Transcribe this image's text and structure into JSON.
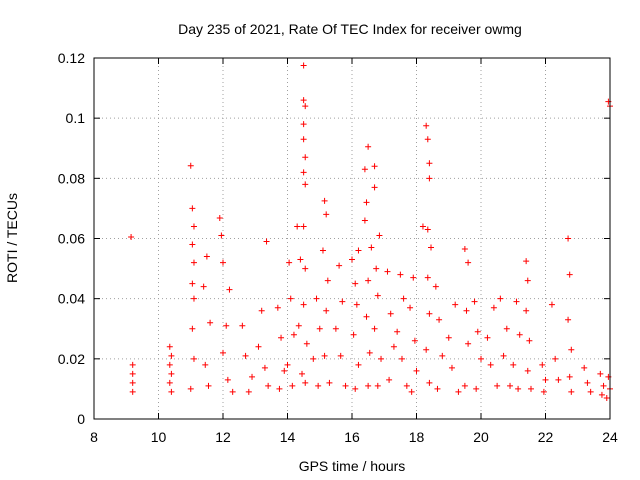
{
  "chart_data": {
    "type": "scatter",
    "title": "Day 235 of 2021, Rate Of TEC Index for receiver owmg",
    "xlabel": "GPS time / hours",
    "ylabel": "ROTI / TECUs",
    "xlim": [
      8,
      24
    ],
    "ylim": [
      0,
      0.12
    ],
    "xticks": [
      8,
      10,
      12,
      14,
      16,
      18,
      20,
      22,
      24
    ],
    "xtick_labels": [
      "8",
      "10",
      "12",
      "14",
      "16",
      "18",
      "20",
      "22",
      "24"
    ],
    "yticks": [
      0,
      0.02,
      0.04,
      0.06,
      0.08,
      0.1,
      0.12
    ],
    "ytick_labels": [
      "0",
      "0.02",
      "0.04",
      "0.06",
      "0.08",
      "0.1",
      "0.12"
    ],
    "grid": true,
    "marker": "plus",
    "color": "#ff0000",
    "series": [
      {
        "points": [
          [
            9.15,
            0.0605
          ],
          [
            9.2,
            0.018
          ],
          [
            9.2,
            0.015
          ],
          [
            9.2,
            0.012
          ],
          [
            9.2,
            0.009
          ],
          [
            10.35,
            0.024
          ],
          [
            10.4,
            0.021
          ],
          [
            10.35,
            0.018
          ],
          [
            10.4,
            0.015
          ],
          [
            10.35,
            0.012
          ],
          [
            10.4,
            0.009
          ],
          [
            11.0,
            0.0842
          ],
          [
            11.05,
            0.07
          ],
          [
            11.1,
            0.064
          ],
          [
            11.05,
            0.058
          ],
          [
            11.1,
            0.052
          ],
          [
            11.05,
            0.045
          ],
          [
            11.1,
            0.04
          ],
          [
            11.05,
            0.03
          ],
          [
            11.1,
            0.02
          ],
          [
            11.0,
            0.01
          ],
          [
            11.5,
            0.054
          ],
          [
            11.4,
            0.044
          ],
          [
            11.6,
            0.032
          ],
          [
            11.45,
            0.018
          ],
          [
            11.55,
            0.011
          ],
          [
            11.9,
            0.0668
          ],
          [
            11.95,
            0.061
          ],
          [
            12.0,
            0.052
          ],
          [
            12.2,
            0.043
          ],
          [
            12.1,
            0.031
          ],
          [
            12.0,
            0.022
          ],
          [
            12.15,
            0.013
          ],
          [
            12.3,
            0.009
          ],
          [
            12.6,
            0.031
          ],
          [
            12.7,
            0.021
          ],
          [
            12.9,
            0.014
          ],
          [
            12.8,
            0.009
          ],
          [
            13.2,
            0.036
          ],
          [
            13.1,
            0.024
          ],
          [
            13.35,
            0.059
          ],
          [
            13.3,
            0.017
          ],
          [
            13.4,
            0.011
          ],
          [
            13.7,
            0.037
          ],
          [
            13.8,
            0.027
          ],
          [
            13.9,
            0.016
          ],
          [
            13.75,
            0.01
          ],
          [
            14.05,
            0.052
          ],
          [
            14.1,
            0.04
          ],
          [
            14.2,
            0.028
          ],
          [
            14.0,
            0.018
          ],
          [
            14.15,
            0.011
          ],
          [
            14.3,
            0.064
          ],
          [
            14.4,
            0.053
          ],
          [
            14.35,
            0.031
          ],
          [
            14.45,
            0.015
          ],
          [
            14.5,
            0.1175
          ],
          [
            14.5,
            0.106
          ],
          [
            14.55,
            0.104
          ],
          [
            14.5,
            0.098
          ],
          [
            14.5,
            0.093
          ],
          [
            14.55,
            0.087
          ],
          [
            14.5,
            0.082
          ],
          [
            14.55,
            0.078
          ],
          [
            14.5,
            0.064
          ],
          [
            14.55,
            0.05
          ],
          [
            14.5,
            0.038
          ],
          [
            14.6,
            0.025
          ],
          [
            14.55,
            0.012
          ],
          [
            14.9,
            0.04
          ],
          [
            15.0,
            0.03
          ],
          [
            14.8,
            0.02
          ],
          [
            14.95,
            0.011
          ],
          [
            15.15,
            0.0725
          ],
          [
            15.2,
            0.068
          ],
          [
            15.1,
            0.056
          ],
          [
            15.25,
            0.046
          ],
          [
            15.2,
            0.036
          ],
          [
            15.15,
            0.021
          ],
          [
            15.3,
            0.012
          ],
          [
            15.6,
            0.051
          ],
          [
            15.7,
            0.039
          ],
          [
            15.5,
            0.03
          ],
          [
            15.65,
            0.021
          ],
          [
            15.8,
            0.011
          ],
          [
            16.0,
            0.053
          ],
          [
            16.1,
            0.045
          ],
          [
            16.2,
            0.056
          ],
          [
            16.15,
            0.038
          ],
          [
            16.05,
            0.028
          ],
          [
            16.2,
            0.018
          ],
          [
            16.1,
            0.01
          ],
          [
            16.4,
            0.083
          ],
          [
            16.5,
            0.0905
          ],
          [
            16.45,
            0.072
          ],
          [
            16.4,
            0.066
          ],
          [
            16.6,
            0.057
          ],
          [
            16.5,
            0.046
          ],
          [
            16.45,
            0.034
          ],
          [
            16.55,
            0.022
          ],
          [
            16.5,
            0.011
          ],
          [
            16.7,
            0.084
          ],
          [
            16.7,
            0.077
          ],
          [
            16.75,
            0.05
          ],
          [
            16.8,
            0.041
          ],
          [
            16.7,
            0.03
          ],
          [
            16.85,
            0.061
          ],
          [
            16.9,
            0.02
          ],
          [
            16.8,
            0.011
          ],
          [
            17.1,
            0.049
          ],
          [
            17.2,
            0.035
          ],
          [
            17.3,
            0.024
          ],
          [
            17.15,
            0.013
          ],
          [
            17.5,
            0.048
          ],
          [
            17.6,
            0.04
          ],
          [
            17.4,
            0.029
          ],
          [
            17.55,
            0.02
          ],
          [
            17.7,
            0.011
          ],
          [
            17.9,
            0.047
          ],
          [
            17.8,
            0.037
          ],
          [
            17.95,
            0.026
          ],
          [
            18.0,
            0.016
          ],
          [
            17.85,
            0.009
          ],
          [
            18.2,
            0.064
          ],
          [
            18.3,
            0.0975
          ],
          [
            18.35,
            0.093
          ],
          [
            18.4,
            0.085
          ],
          [
            18.4,
            0.08
          ],
          [
            18.35,
            0.063
          ],
          [
            18.45,
            0.057
          ],
          [
            18.35,
            0.047
          ],
          [
            18.4,
            0.035
          ],
          [
            18.3,
            0.023
          ],
          [
            18.4,
            0.012
          ],
          [
            18.6,
            0.044
          ],
          [
            18.7,
            0.033
          ],
          [
            18.8,
            0.021
          ],
          [
            18.65,
            0.01
          ],
          [
            19.0,
            0.027
          ],
          [
            19.2,
            0.038
          ],
          [
            19.1,
            0.017
          ],
          [
            19.3,
            0.009
          ],
          [
            19.5,
            0.0565
          ],
          [
            19.6,
            0.052
          ],
          [
            19.55,
            0.036
          ],
          [
            19.6,
            0.025
          ],
          [
            19.5,
            0.011
          ],
          [
            19.8,
            0.039
          ],
          [
            19.9,
            0.029
          ],
          [
            20.0,
            0.02
          ],
          [
            19.85,
            0.01
          ],
          [
            20.2,
            0.027
          ],
          [
            20.4,
            0.037
          ],
          [
            20.3,
            0.018
          ],
          [
            20.5,
            0.011
          ],
          [
            20.6,
            0.04
          ],
          [
            20.8,
            0.03
          ],
          [
            20.7,
            0.021
          ],
          [
            20.9,
            0.011
          ],
          [
            21.1,
            0.039
          ],
          [
            21.2,
            0.028
          ],
          [
            21.0,
            0.018
          ],
          [
            21.15,
            0.01
          ],
          [
            21.4,
            0.0525
          ],
          [
            21.45,
            0.046
          ],
          [
            21.4,
            0.036
          ],
          [
            21.5,
            0.026
          ],
          [
            21.45,
            0.016
          ],
          [
            21.55,
            0.01
          ],
          [
            21.9,
            0.018
          ],
          [
            22.0,
            0.013
          ],
          [
            21.95,
            0.009
          ],
          [
            22.2,
            0.038
          ],
          [
            22.3,
            0.02
          ],
          [
            22.4,
            0.013
          ],
          [
            22.7,
            0.06
          ],
          [
            22.75,
            0.048
          ],
          [
            22.7,
            0.033
          ],
          [
            22.8,
            0.023
          ],
          [
            22.75,
            0.014
          ],
          [
            22.8,
            0.009
          ],
          [
            23.2,
            0.017
          ],
          [
            23.3,
            0.012
          ],
          [
            23.4,
            0.009
          ],
          [
            23.7,
            0.015
          ],
          [
            23.8,
            0.011
          ],
          [
            23.75,
            0.008
          ],
          [
            23.95,
            0.1055
          ],
          [
            24.0,
            0.104
          ],
          [
            23.95,
            0.014
          ],
          [
            24.0,
            0.01
          ],
          [
            23.9,
            0.007
          ]
        ]
      }
    ]
  }
}
